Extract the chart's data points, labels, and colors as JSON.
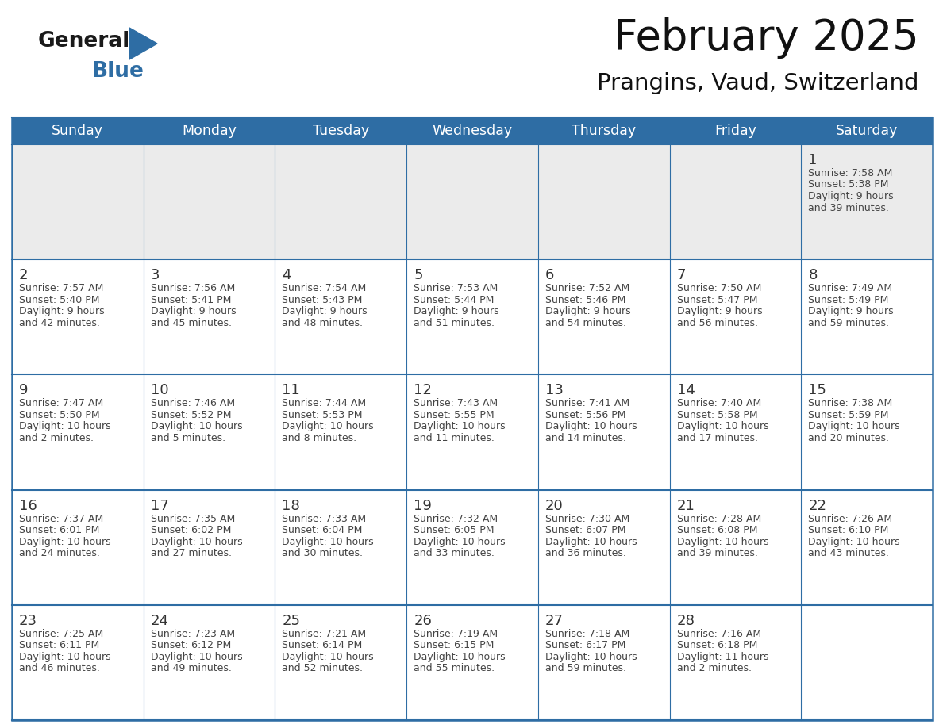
{
  "title": "February 2025",
  "subtitle": "Prangins, Vaud, Switzerland",
  "header_bg_color": "#2E6DA4",
  "header_text_color": "#FFFFFF",
  "row1_bg_color": "#EBEBEB",
  "cell_bg_color": "#FFFFFF",
  "day_number_color": "#333333",
  "info_text_color": "#444444",
  "border_color": "#2E6DA4",
  "days_of_week": [
    "Sunday",
    "Monday",
    "Tuesday",
    "Wednesday",
    "Thursday",
    "Friday",
    "Saturday"
  ],
  "logo_text1": "General",
  "logo_text2": "Blue",
  "logo_color1": "#1a1a1a",
  "logo_color2": "#2E6DA4",
  "calendar": [
    [
      null,
      null,
      null,
      null,
      null,
      null,
      {
        "day": 1,
        "sunrise": "7:58 AM",
        "sunset": "5:38 PM",
        "daylight_hours": 9,
        "daylight_minutes": 39
      }
    ],
    [
      {
        "day": 2,
        "sunrise": "7:57 AM",
        "sunset": "5:40 PM",
        "daylight_hours": 9,
        "daylight_minutes": 42
      },
      {
        "day": 3,
        "sunrise": "7:56 AM",
        "sunset": "5:41 PM",
        "daylight_hours": 9,
        "daylight_minutes": 45
      },
      {
        "day": 4,
        "sunrise": "7:54 AM",
        "sunset": "5:43 PM",
        "daylight_hours": 9,
        "daylight_minutes": 48
      },
      {
        "day": 5,
        "sunrise": "7:53 AM",
        "sunset": "5:44 PM",
        "daylight_hours": 9,
        "daylight_minutes": 51
      },
      {
        "day": 6,
        "sunrise": "7:52 AM",
        "sunset": "5:46 PM",
        "daylight_hours": 9,
        "daylight_minutes": 54
      },
      {
        "day": 7,
        "sunrise": "7:50 AM",
        "sunset": "5:47 PM",
        "daylight_hours": 9,
        "daylight_minutes": 56
      },
      {
        "day": 8,
        "sunrise": "7:49 AM",
        "sunset": "5:49 PM",
        "daylight_hours": 9,
        "daylight_minutes": 59
      }
    ],
    [
      {
        "day": 9,
        "sunrise": "7:47 AM",
        "sunset": "5:50 PM",
        "daylight_hours": 10,
        "daylight_minutes": 2
      },
      {
        "day": 10,
        "sunrise": "7:46 AM",
        "sunset": "5:52 PM",
        "daylight_hours": 10,
        "daylight_minutes": 5
      },
      {
        "day": 11,
        "sunrise": "7:44 AM",
        "sunset": "5:53 PM",
        "daylight_hours": 10,
        "daylight_minutes": 8
      },
      {
        "day": 12,
        "sunrise": "7:43 AM",
        "sunset": "5:55 PM",
        "daylight_hours": 10,
        "daylight_minutes": 11
      },
      {
        "day": 13,
        "sunrise": "7:41 AM",
        "sunset": "5:56 PM",
        "daylight_hours": 10,
        "daylight_minutes": 14
      },
      {
        "day": 14,
        "sunrise": "7:40 AM",
        "sunset": "5:58 PM",
        "daylight_hours": 10,
        "daylight_minutes": 17
      },
      {
        "day": 15,
        "sunrise": "7:38 AM",
        "sunset": "5:59 PM",
        "daylight_hours": 10,
        "daylight_minutes": 20
      }
    ],
    [
      {
        "day": 16,
        "sunrise": "7:37 AM",
        "sunset": "6:01 PM",
        "daylight_hours": 10,
        "daylight_minutes": 24
      },
      {
        "day": 17,
        "sunrise": "7:35 AM",
        "sunset": "6:02 PM",
        "daylight_hours": 10,
        "daylight_minutes": 27
      },
      {
        "day": 18,
        "sunrise": "7:33 AM",
        "sunset": "6:04 PM",
        "daylight_hours": 10,
        "daylight_minutes": 30
      },
      {
        "day": 19,
        "sunrise": "7:32 AM",
        "sunset": "6:05 PM",
        "daylight_hours": 10,
        "daylight_minutes": 33
      },
      {
        "day": 20,
        "sunrise": "7:30 AM",
        "sunset": "6:07 PM",
        "daylight_hours": 10,
        "daylight_minutes": 36
      },
      {
        "day": 21,
        "sunrise": "7:28 AM",
        "sunset": "6:08 PM",
        "daylight_hours": 10,
        "daylight_minutes": 39
      },
      {
        "day": 22,
        "sunrise": "7:26 AM",
        "sunset": "6:10 PM",
        "daylight_hours": 10,
        "daylight_minutes": 43
      }
    ],
    [
      {
        "day": 23,
        "sunrise": "7:25 AM",
        "sunset": "6:11 PM",
        "daylight_hours": 10,
        "daylight_minutes": 46
      },
      {
        "day": 24,
        "sunrise": "7:23 AM",
        "sunset": "6:12 PM",
        "daylight_hours": 10,
        "daylight_minutes": 49
      },
      {
        "day": 25,
        "sunrise": "7:21 AM",
        "sunset": "6:14 PM",
        "daylight_hours": 10,
        "daylight_minutes": 52
      },
      {
        "day": 26,
        "sunrise": "7:19 AM",
        "sunset": "6:15 PM",
        "daylight_hours": 10,
        "daylight_minutes": 55
      },
      {
        "day": 27,
        "sunrise": "7:18 AM",
        "sunset": "6:17 PM",
        "daylight_hours": 10,
        "daylight_minutes": 59
      },
      {
        "day": 28,
        "sunrise": "7:16 AM",
        "sunset": "6:18 PM",
        "daylight_hours": 11,
        "daylight_minutes": 2
      },
      null
    ]
  ]
}
